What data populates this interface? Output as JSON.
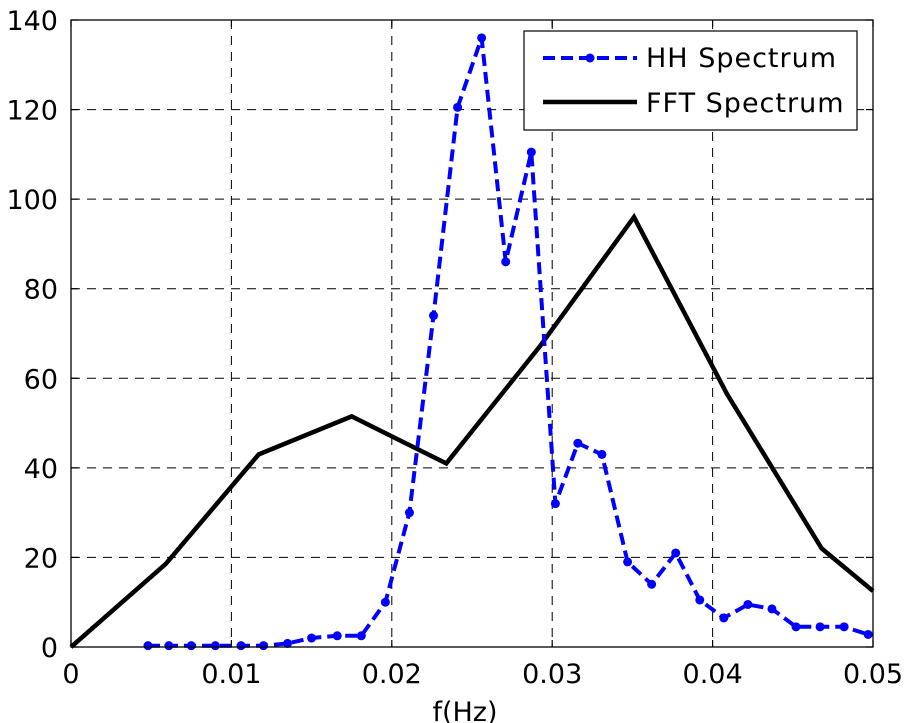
{
  "chart_data": {
    "type": "line",
    "title": "",
    "xlabel": "f(Hz)",
    "ylabel": "",
    "xlim": [
      0,
      0.05
    ],
    "ylim": [
      0,
      140
    ],
    "grid": true,
    "legend_position": "upper right",
    "x_ticks": [
      0,
      0.01,
      0.02,
      0.03,
      0.04,
      0.05
    ],
    "x_tick_labels": [
      "0",
      "0.01",
      "0.02",
      "0.03",
      "0.04",
      "0.05"
    ],
    "y_ticks": [
      0,
      20,
      40,
      60,
      80,
      100,
      120,
      140
    ],
    "y_tick_labels": [
      "0",
      "20",
      "40",
      "60",
      "80",
      "100",
      "120",
      "140"
    ],
    "series": [
      {
        "name": "HH Spectrum",
        "color": "#0000ff",
        "style": "dashed",
        "marker": "dot",
        "x": [
          0.0048,
          0.0061,
          0.0075,
          0.009,
          0.0106,
          0.012,
          0.0135,
          0.015,
          0.0166,
          0.0181,
          0.0196,
          0.0211,
          0.0226,
          0.0241,
          0.0256,
          0.0271,
          0.0287,
          0.0302,
          0.0316,
          0.0331,
          0.0347,
          0.0362,
          0.0377,
          0.0392,
          0.0407,
          0.0422,
          0.0437,
          0.0452,
          0.0467,
          0.0482,
          0.0497
        ],
        "values": [
          0.3,
          0.3,
          0.3,
          0.3,
          0.3,
          0.3,
          0.8,
          2.0,
          2.5,
          2.5,
          10.0,
          30.0,
          74.0,
          120.5,
          136.0,
          86.0,
          110.5,
          32.0,
          45.5,
          43.0,
          19.0,
          14.0,
          21.0,
          10.5,
          6.5,
          9.5,
          8.5,
          4.5,
          4.5,
          4.5,
          2.8
        ]
      },
      {
        "name": "FFT Spectrum",
        "color": "#000000",
        "style": "solid",
        "marker": "none",
        "x": [
          0.0,
          0.0059,
          0.0117,
          0.0175,
          0.0234,
          0.0292,
          0.0351,
          0.0409,
          0.0468,
          0.05
        ],
        "values": [
          0.0,
          18.5,
          43.0,
          51.5,
          41.0,
          67.0,
          96.0,
          56.5,
          22.0,
          12.5
        ]
      }
    ]
  },
  "legend": {
    "items": [
      {
        "label": "HH Spectrum"
      },
      {
        "label": "FFT Spectrum"
      }
    ]
  }
}
